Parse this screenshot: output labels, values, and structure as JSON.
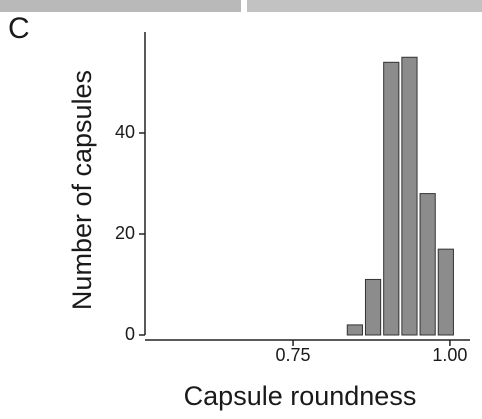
{
  "panel_label": "C",
  "chart_data": {
    "type": "histogram",
    "x_label": "Capsule roundness",
    "y_label": "Number of capsules",
    "bins": [
      0.834,
      0.863,
      0.892,
      0.921,
      0.95,
      0.979,
      1.008
    ],
    "values": [
      2,
      11,
      54,
      55,
      28,
      17
    ],
    "color": "#8c8c8c",
    "xlim": [
      0.514,
      1.032
    ],
    "xticks": [
      0.75,
      {
        "value": 1.0,
        "label": "1.00"
      }
    ],
    "ylim": [
      0,
      60
    ],
    "yticks": [
      0,
      20,
      40
    ]
  }
}
